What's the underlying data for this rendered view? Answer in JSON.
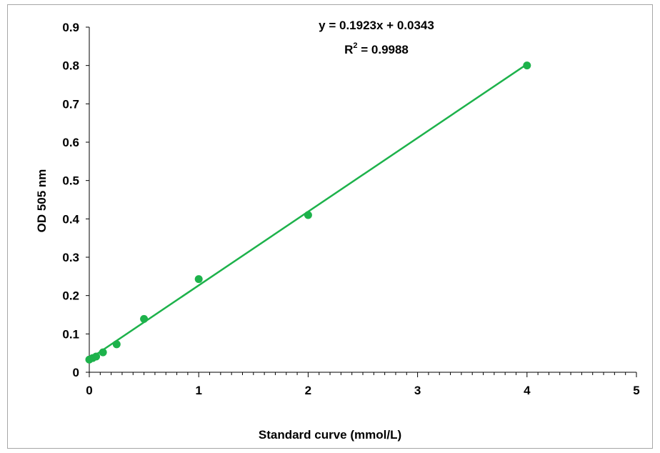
{
  "chart_data": {
    "type": "scatter",
    "title": "",
    "xlabel": "Standard curve (mmol/L)",
    "ylabel": "OD 505 nm",
    "xlim": [
      0,
      5
    ],
    "ylim": [
      0,
      0.9
    ],
    "x_ticks": [
      "0",
      "1",
      "2",
      "3",
      "4",
      "5"
    ],
    "y_ticks": [
      "0",
      "0.1",
      "0.2",
      "0.3",
      "0.4",
      "0.5",
      "0.6",
      "0.7",
      "0.8",
      "0.9"
    ],
    "grid": false,
    "legend": "none",
    "series": [
      {
        "color": "#1db24b",
        "x": [
          0.0,
          0.03125,
          0.0625,
          0.125,
          0.25,
          0.5,
          1,
          2,
          4
        ],
        "y": [
          0.033,
          0.037,
          0.041,
          0.052,
          0.073,
          0.139,
          0.243,
          0.41,
          0.8
        ]
      }
    ],
    "trendline": {
      "slope": 0.1923,
      "intercept": 0.0343,
      "x_range": [
        0,
        4
      ],
      "color": "#1db24b"
    },
    "annotations": {
      "equation": "y = 0.1923x + 0.0343",
      "r2_prefix": "R",
      "r2_sup": "2",
      "r2_value": " = 0.9988"
    }
  }
}
